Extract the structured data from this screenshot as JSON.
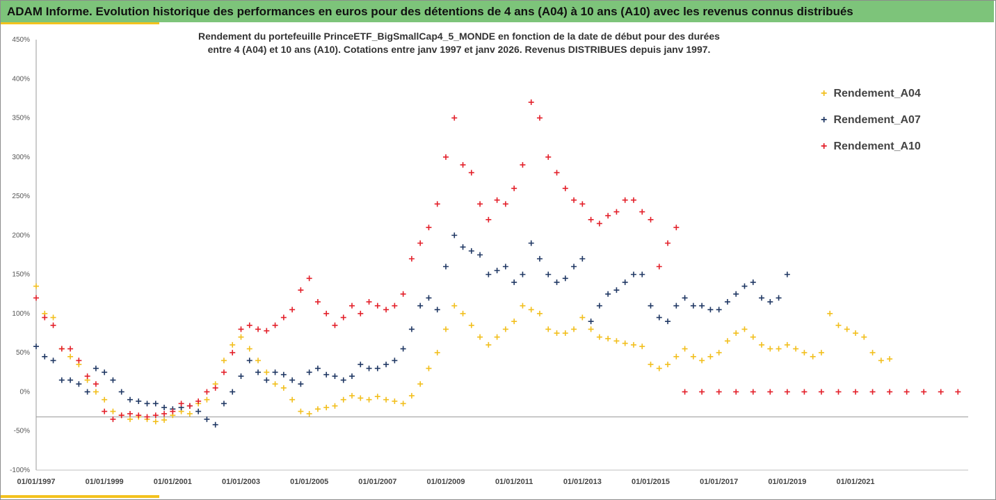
{
  "header": {
    "title": "ADAM Informe. Evolution historique des performances en euros pour des détentions de 4 ans (A04) à 10 ans (A10) avec les revenus connus distribués"
  },
  "chart_data": {
    "type": "scatter",
    "title_line1": "Rendement du portefeuille PrinceETF_BigSmallCap4_5_MONDE  en fonction de la date de début pour des durées",
    "title_line2": "entre 4 (A04) et 10 ans (A10). Cotations entre janv 1997 et janv 2026. Revenus DISTRIBUES depuis janv 1997.",
    "xlabel": "",
    "ylabel": "",
    "ylim": [
      -100,
      450
    ],
    "xlim": [
      1997.0,
      2024.3
    ],
    "y_ticks": [
      450,
      400,
      350,
      300,
      250,
      200,
      150,
      100,
      50,
      0,
      -50,
      -100
    ],
    "y_tick_labels": [
      "450%",
      "400%",
      "350%",
      "300%",
      "250%",
      "200%",
      "150%",
      "100%",
      "50%",
      "0%",
      "-50%",
      "-100%"
    ],
    "x_ticks": [
      1997,
      1999,
      2001,
      2003,
      2005,
      2007,
      2009,
      2011,
      2013,
      2015,
      2017,
      2019,
      2021
    ],
    "x_tick_labels": [
      "01/01/1997",
      "01/01/1999",
      "01/01/2001",
      "01/01/2003",
      "01/01/2005",
      "01/01/2007",
      "01/01/2009",
      "01/01/2011",
      "01/01/2013",
      "01/01/2015",
      "01/01/2017",
      "01/01/2019",
      "01/01/2021"
    ],
    "reference_line_y": -32,
    "marker": "plus",
    "legend_position": "top-right",
    "series": [
      {
        "name": "Rendement_A04",
        "color": "#f2bf1d",
        "x": [
          1997.0,
          1997.25,
          1997.5,
          1997.75,
          1998.0,
          1998.25,
          1998.5,
          1998.75,
          1999.0,
          1999.25,
          1999.5,
          1999.75,
          2000.0,
          2000.25,
          2000.5,
          2000.75,
          2001.0,
          2001.25,
          2001.5,
          2001.75,
          2002.0,
          2002.25,
          2002.5,
          2002.75,
          2003.0,
          2003.25,
          2003.5,
          2003.75,
          2004.0,
          2004.25,
          2004.5,
          2004.75,
          2005.0,
          2005.25,
          2005.5,
          2005.75,
          2006.0,
          2006.25,
          2006.5,
          2006.75,
          2007.0,
          2007.25,
          2007.5,
          2007.75,
          2008.0,
          2008.25,
          2008.5,
          2008.75,
          2009.0,
          2009.25,
          2009.5,
          2009.75,
          2010.0,
          2010.25,
          2010.5,
          2010.75,
          2011.0,
          2011.25,
          2011.5,
          2011.75,
          2012.0,
          2012.25,
          2012.5,
          2012.75,
          2013.0,
          2013.25,
          2013.5,
          2013.75,
          2014.0,
          2014.25,
          2014.5,
          2014.75,
          2015.0,
          2015.25,
          2015.5,
          2015.75,
          2016.0,
          2016.25,
          2016.5,
          2016.75,
          2017.0,
          2017.25,
          2017.5,
          2017.75,
          2018.0,
          2018.25,
          2018.5,
          2018.75,
          2019.0,
          2019.25,
          2019.5,
          2019.75,
          2020.0,
          2020.25,
          2020.5,
          2020.75,
          2021.0,
          2021.25,
          2021.5,
          2021.75,
          2022.0
        ],
        "y": [
          135,
          100,
          95,
          55,
          45,
          35,
          15,
          0,
          -10,
          -25,
          -30,
          -35,
          -32,
          -35,
          -38,
          -36,
          -30,
          -25,
          -28,
          -15,
          -10,
          10,
          40,
          60,
          70,
          55,
          40,
          25,
          10,
          5,
          -10,
          -25,
          -28,
          -22,
          -20,
          -18,
          -10,
          -5,
          -8,
          -10,
          -6,
          -10,
          -12,
          -15,
          -5,
          10,
          30,
          50,
          80,
          110,
          100,
          85,
          70,
          60,
          70,
          80,
          90,
          110,
          105,
          100,
          80,
          75,
          75,
          80,
          95,
          80,
          70,
          68,
          65,
          62,
          60,
          58,
          35,
          30,
          35,
          45,
          55,
          45,
          40,
          45,
          50,
          65,
          75,
          80,
          70,
          60,
          55,
          55,
          60,
          55,
          50,
          45,
          50,
          100,
          85,
          80,
          75,
          70,
          50,
          40,
          42
        ]
      },
      {
        "name": "Rendement_A07",
        "color": "#203864",
        "x": [
          1997.0,
          1997.25,
          1997.5,
          1997.75,
          1998.0,
          1998.25,
          1998.5,
          1998.75,
          1999.0,
          1999.25,
          1999.5,
          1999.75,
          2000.0,
          2000.25,
          2000.5,
          2000.75,
          2001.0,
          2001.25,
          2001.5,
          2001.75,
          2002.0,
          2002.25,
          2002.5,
          2002.75,
          2003.0,
          2003.25,
          2003.5,
          2003.75,
          2004.0,
          2004.25,
          2004.5,
          2004.75,
          2005.0,
          2005.25,
          2005.5,
          2005.75,
          2006.0,
          2006.25,
          2006.5,
          2006.75,
          2007.0,
          2007.25,
          2007.5,
          2007.75,
          2008.0,
          2008.25,
          2008.5,
          2008.75,
          2009.0,
          2009.25,
          2009.5,
          2009.75,
          2010.0,
          2010.25,
          2010.5,
          2010.75,
          2011.0,
          2011.25,
          2011.5,
          2011.75,
          2012.0,
          2012.25,
          2012.5,
          2012.75,
          2013.0,
          2013.25,
          2013.5,
          2013.75,
          2014.0,
          2014.25,
          2014.5,
          2014.75,
          2015.0,
          2015.25,
          2015.5,
          2015.75,
          2016.0,
          2016.25,
          2016.5,
          2016.75,
          2017.0,
          2017.25,
          2017.5,
          2017.75,
          2018.0,
          2018.25,
          2018.5,
          2018.75,
          2019.0
        ],
        "y": [
          58,
          45,
          40,
          15,
          15,
          10,
          0,
          30,
          25,
          15,
          0,
          -10,
          -12,
          -15,
          -15,
          -20,
          -22,
          -20,
          -18,
          -25,
          -35,
          -42,
          -15,
          0,
          20,
          40,
          25,
          15,
          25,
          22,
          15,
          10,
          25,
          30,
          22,
          20,
          15,
          20,
          35,
          30,
          30,
          35,
          40,
          55,
          80,
          110,
          120,
          105,
          160,
          200,
          185,
          180,
          175,
          150,
          155,
          160,
          140,
          150,
          190,
          170,
          150,
          140,
          145,
          160,
          170,
          90,
          110,
          125,
          130,
          140,
          150,
          150,
          110,
          95,
          90,
          110,
          120,
          110,
          110,
          105,
          105,
          115,
          125,
          135,
          140,
          120,
          115,
          120,
          150
        ]
      },
      {
        "name": "Rendement_A10",
        "color": "#e3202a",
        "x": [
          1997.0,
          1997.25,
          1997.5,
          1997.75,
          1998.0,
          1998.25,
          1998.5,
          1998.75,
          1999.0,
          1999.25,
          1999.5,
          1999.75,
          2000.0,
          2000.25,
          2000.5,
          2000.75,
          2001.0,
          2001.25,
          2001.5,
          2001.75,
          2002.0,
          2002.25,
          2002.5,
          2002.75,
          2003.0,
          2003.25,
          2003.5,
          2003.75,
          2004.0,
          2004.25,
          2004.5,
          2004.75,
          2005.0,
          2005.25,
          2005.5,
          2005.75,
          2006.0,
          2006.25,
          2006.5,
          2006.75,
          2007.0,
          2007.25,
          2007.5,
          2007.75,
          2008.0,
          2008.25,
          2008.5,
          2008.75,
          2009.0,
          2009.25,
          2009.5,
          2009.75,
          2010.0,
          2010.25,
          2010.5,
          2010.75,
          2011.0,
          2011.25,
          2011.5,
          2011.75,
          2012.0,
          2012.25,
          2012.5,
          2012.75,
          2013.0,
          2013.25,
          2013.5,
          2013.75,
          2014.0,
          2014.25,
          2014.5,
          2014.75,
          2015.0,
          2015.25,
          2015.5,
          2015.75
        ],
        "y": [
          120,
          95,
          85,
          55,
          55,
          40,
          20,
          10,
          -25,
          -35,
          -30,
          -28,
          -30,
          -32,
          -30,
          -28,
          -25,
          -15,
          -18,
          -12,
          0,
          5,
          25,
          50,
          80,
          85,
          80,
          78,
          85,
          95,
          105,
          130,
          145,
          115,
          100,
          85,
          95,
          110,
          100,
          115,
          110,
          105,
          110,
          125,
          170,
          190,
          210,
          240,
          300,
          350,
          290,
          280,
          240,
          220,
          245,
          240,
          260,
          290,
          370,
          350,
          300,
          280,
          260,
          245,
          240,
          220,
          215,
          225,
          230,
          245,
          245,
          230,
          220,
          160,
          190,
          210
        ]
      },
      {
        "name": "",
        "color": "#e3202a",
        "x": [
          2016.0,
          2016.5,
          2017.0,
          2017.5,
          2018.0,
          2018.5,
          2019.0,
          2019.5,
          2020.0,
          2020.5,
          2021.0,
          2021.5,
          2022.0,
          2022.5,
          2023.0,
          2023.5,
          2024.0
        ],
        "y": [
          0,
          0,
          0,
          0,
          0,
          0,
          0,
          0,
          0,
          0,
          0,
          0,
          0,
          0,
          0,
          0,
          0
        ]
      }
    ]
  }
}
